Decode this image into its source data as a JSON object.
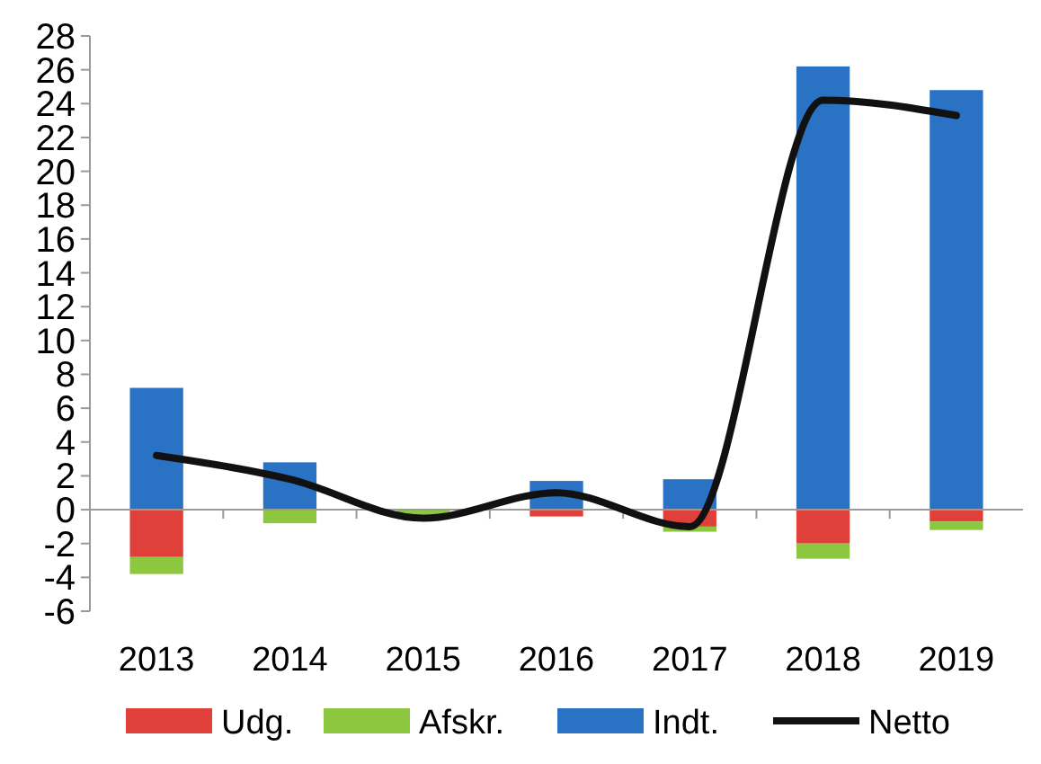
{
  "chart_data": {
    "type": "bar",
    "stacked": true,
    "categories": [
      "2013",
      "2014",
      "2015",
      "2016",
      "2017",
      "2018",
      "2019"
    ],
    "series": [
      {
        "name": "Udg.",
        "color": "#e0403a",
        "values": [
          -2.8,
          0,
          0,
          -0.4,
          -1.0,
          -2.0,
          -0.7
        ]
      },
      {
        "name": "Afskr.",
        "color": "#8dc63f",
        "values": [
          -1.0,
          -0.8,
          -0.3,
          0,
          -0.3,
          -0.9,
          -0.5
        ]
      },
      {
        "name": "Indt.",
        "color": "#2a72c4",
        "values": [
          7.2,
          2.8,
          0,
          1.7,
          1.8,
          26.2,
          24.8
        ]
      },
      {
        "name": "Netto",
        "type": "line",
        "color": "#111111",
        "values": [
          3.2,
          1.8,
          -0.5,
          1.0,
          -1.0,
          24.2,
          23.3
        ]
      }
    ],
    "ylim": [
      -6,
      28
    ],
    "yticks": [
      -6,
      -4,
      -2,
      0,
      2,
      4,
      6,
      8,
      10,
      12,
      14,
      16,
      18,
      20,
      22,
      24,
      26,
      28
    ],
    "legend": "bottom",
    "marker": "none"
  }
}
